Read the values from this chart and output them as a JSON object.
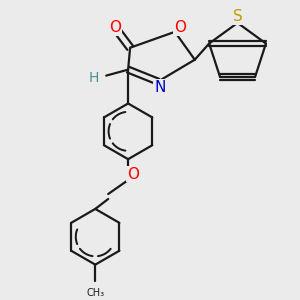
{
  "background_color": "#ebebeb",
  "bond_color": "#1a1a1a",
  "bond_width": 1.6,
  "figsize": [
    3.0,
    3.0
  ],
  "dpi": 100,
  "colors": {
    "O": "#ff0000",
    "N": "#0000cc",
    "S": "#b8a000",
    "H": "#4a9090",
    "C": "#1a1a1a"
  }
}
